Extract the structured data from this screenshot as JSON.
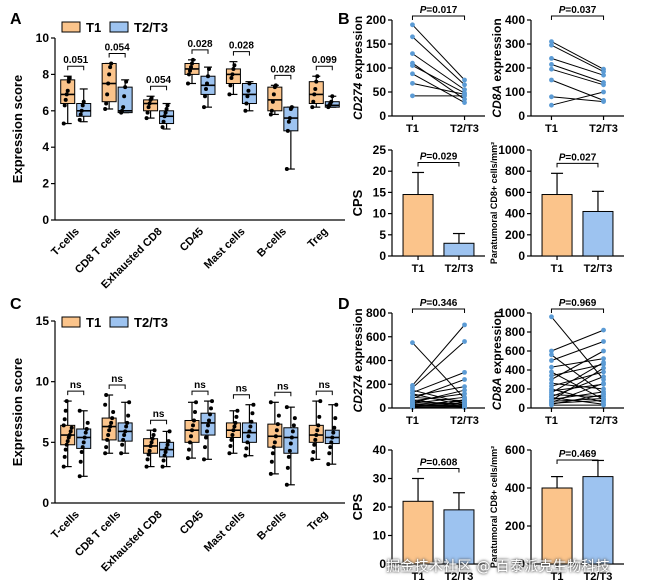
{
  "colors": {
    "t1": "#FBC48B",
    "t23": "#9DC3F0",
    "dot": "#000000",
    "line": "#000000",
    "point": "#5B9BD5"
  },
  "legend": {
    "t1": "T1",
    "t23": "T2/T3"
  },
  "watermark": "掘金技术社区 @ 百泰派克生物科技",
  "chart_data": [
    {
      "id": "A",
      "panel": "A",
      "type": "box",
      "ylabel": "Expression score",
      "ylim": [
        0,
        10
      ],
      "yticks": [
        0,
        2,
        4,
        6,
        8,
        10
      ],
      "categories": [
        "T-cells",
        "CD8 T cells",
        "Exhausted CD8",
        "CD45",
        "Mast cells",
        "B-cells",
        "Treg"
      ],
      "pvalues": [
        "0.051",
        "0.054",
        "0.054",
        "0.028",
        "0.028",
        "0.028",
        "0.099"
      ],
      "series": [
        {
          "name": "T1",
          "boxes": [
            {
              "min": 5.3,
              "q1": 6.4,
              "med": 6.9,
              "q3": 7.7,
              "max": 7.9,
              "pts": [
                5.3,
                6.3,
                6.6,
                6.9,
                7.1,
                7.6,
                7.8
              ]
            },
            {
              "min": 6.1,
              "q1": 6.5,
              "med": 7.5,
              "q3": 8.6,
              "max": 8.6,
              "pts": [
                6.1,
                6.4,
                6.9,
                7.5,
                8.0,
                8.4,
                8.6
              ]
            },
            {
              "min": 5.6,
              "q1": 6.0,
              "med": 6.4,
              "q3": 6.6,
              "max": 6.8,
              "pts": [
                5.6,
                5.9,
                6.2,
                6.4,
                6.6,
                6.7
              ]
            },
            {
              "min": 7.5,
              "q1": 8.0,
              "med": 8.3,
              "q3": 8.6,
              "max": 8.8,
              "pts": [
                7.5,
                8.0,
                8.2,
                8.4,
                8.6,
                8.8
              ]
            },
            {
              "min": 6.9,
              "q1": 7.5,
              "med": 8.0,
              "q3": 8.3,
              "max": 8.7,
              "pts": [
                6.9,
                7.4,
                7.8,
                8.0,
                8.3,
                8.5
              ]
            },
            {
              "min": 5.8,
              "q1": 6.0,
              "med": 6.6,
              "q3": 7.3,
              "max": 7.4,
              "pts": [
                5.8,
                6.0,
                6.5,
                6.9,
                7.3,
                7.4
              ]
            },
            {
              "min": 6.2,
              "q1": 6.4,
              "med": 6.9,
              "q3": 7.6,
              "max": 7.9,
              "pts": [
                6.2,
                6.5,
                6.9,
                7.2,
                7.6,
                7.9
              ]
            }
          ]
        },
        {
          "name": "T2/T3",
          "boxes": [
            {
              "min": 5.4,
              "q1": 5.7,
              "med": 6.0,
              "q3": 6.4,
              "max": 7.2,
              "pts": [
                5.5,
                5.8,
                6.0,
                6.3,
                6.5
              ]
            },
            {
              "min": 5.9,
              "q1": 5.9,
              "med": 6.0,
              "q3": 7.3,
              "max": 7.7,
              "pts": [
                5.9,
                6.0,
                6.2,
                6.8,
                7.3,
                7.6
              ]
            },
            {
              "min": 5.0,
              "q1": 5.3,
              "med": 5.7,
              "q3": 6.0,
              "max": 6.4,
              "pts": [
                5.1,
                5.4,
                5.7,
                5.9,
                6.1,
                6.3
              ]
            },
            {
              "min": 6.2,
              "q1": 6.9,
              "med": 7.4,
              "q3": 7.9,
              "max": 8.4,
              "pts": [
                6.2,
                6.8,
                7.2,
                7.5,
                7.9,
                8.3
              ]
            },
            {
              "min": 6.0,
              "q1": 6.4,
              "med": 6.9,
              "q3": 7.5,
              "max": 7.6,
              "pts": [
                6.0,
                6.4,
                6.8,
                7.1,
                7.5
              ]
            },
            {
              "min": 2.8,
              "q1": 4.9,
              "med": 5.6,
              "q3": 6.2,
              "max": 6.2,
              "pts": [
                2.8,
                4.9,
                5.4,
                5.6,
                6.1,
                6.2
              ]
            },
            {
              "min": 6.2,
              "q1": 6.2,
              "med": 6.3,
              "q3": 6.5,
              "max": 6.8,
              "pts": [
                6.2,
                6.3,
                6.4,
                6.5,
                6.8
              ]
            }
          ]
        }
      ]
    },
    {
      "id": "C",
      "panel": "C",
      "type": "box",
      "ylabel": "Expression score",
      "ylim": [
        0,
        15
      ],
      "yticks": [
        0,
        5,
        10,
        15
      ],
      "categories": [
        "T-cells",
        "CD8 T cells",
        "Exhausted CD8",
        "CD45",
        "Mast cells",
        "B-cells",
        "Treg"
      ],
      "pvalues": [
        "ns",
        "ns",
        "ns",
        "ns",
        "ns",
        "ns",
        "ns"
      ],
      "series": [
        {
          "name": "T1",
          "boxes": [
            {
              "min": 3.0,
              "q1": 4.8,
              "med": 5.6,
              "q3": 6.4,
              "max": 8.4,
              "pts": [
                3.0,
                3.8,
                4.4,
                4.8,
                5.1,
                5.4,
                5.6,
                5.9,
                6.2,
                6.4,
                6.9,
                7.6,
                8.4
              ]
            },
            {
              "min": 4.1,
              "q1": 5.2,
              "med": 6.3,
              "q3": 7.0,
              "max": 8.9,
              "pts": [
                4.1,
                4.6,
                5.2,
                5.6,
                6.0,
                6.3,
                6.6,
                7.0,
                7.5,
                8.1,
                8.9
              ]
            },
            {
              "min": 3.0,
              "q1": 4.1,
              "med": 4.7,
              "q3": 5.3,
              "max": 6.0,
              "pts": [
                3.0,
                3.6,
                4.0,
                4.3,
                4.7,
                5.0,
                5.3,
                5.6,
                6.0
              ]
            },
            {
              "min": 3.7,
              "q1": 5.0,
              "med": 6.0,
              "q3": 6.8,
              "max": 8.3,
              "pts": [
                3.7,
                4.4,
                5.0,
                5.5,
                6.0,
                6.4,
                6.8,
                7.5,
                8.3
              ]
            },
            {
              "min": 4.1,
              "q1": 5.4,
              "med": 6.0,
              "q3": 6.6,
              "max": 7.6,
              "pts": [
                4.1,
                4.7,
                5.2,
                5.6,
                6.0,
                6.3,
                6.6,
                7.1,
                7.6
              ]
            },
            {
              "min": 2.4,
              "q1": 4.6,
              "med": 5.5,
              "q3": 6.5,
              "max": 8.3,
              "pts": [
                2.4,
                3.4,
                4.1,
                4.6,
                5.0,
                5.5,
                6.0,
                6.5,
                7.2,
                8.3
              ]
            },
            {
              "min": 3.6,
              "q1": 5.0,
              "med": 5.6,
              "q3": 6.4,
              "max": 8.4,
              "pts": [
                3.6,
                4.2,
                4.8,
                5.2,
                5.6,
                6.0,
                6.4,
                7.1,
                8.4
              ]
            }
          ]
        },
        {
          "name": "T2/T3",
          "boxes": [
            {
              "min": 2.2,
              "q1": 4.5,
              "med": 5.4,
              "q3": 6.1,
              "max": 7.6,
              "pts": [
                2.2,
                3.4,
                4.2,
                4.6,
                5.0,
                5.4,
                5.8,
                6.1,
                6.6,
                7.6
              ]
            },
            {
              "min": 4.1,
              "q1": 5.1,
              "med": 5.9,
              "q3": 6.6,
              "max": 8.3,
              "pts": [
                4.1,
                4.8,
                5.2,
                5.6,
                5.9,
                6.3,
                6.6,
                7.2,
                8.3
              ]
            },
            {
              "min": 3.0,
              "q1": 3.8,
              "med": 4.4,
              "q3": 5.0,
              "max": 5.9,
              "pts": [
                3.0,
                3.5,
                3.9,
                4.2,
                4.5,
                4.8,
                5.1,
                5.9
              ]
            },
            {
              "min": 3.6,
              "q1": 5.6,
              "med": 6.6,
              "q3": 7.4,
              "max": 8.4,
              "pts": [
                3.6,
                4.6,
                5.4,
                5.9,
                6.4,
                6.8,
                7.3,
                7.8,
                8.4
              ]
            },
            {
              "min": 3.9,
              "q1": 5.0,
              "med": 5.8,
              "q3": 6.6,
              "max": 8.1,
              "pts": [
                3.9,
                4.5,
                5.0,
                5.5,
                5.9,
                6.3,
                6.7,
                7.4,
                8.1
              ]
            },
            {
              "min": 1.5,
              "q1": 4.1,
              "med": 5.4,
              "q3": 6.2,
              "max": 7.9,
              "pts": [
                1.5,
                2.9,
                3.8,
                4.3,
                4.9,
                5.4,
                5.9,
                6.4,
                7.0,
                7.9
              ]
            },
            {
              "min": 3.2,
              "q1": 4.9,
              "med": 5.4,
              "q3": 6.0,
              "max": 8.1,
              "pts": [
                3.2,
                4.1,
                4.6,
                5.0,
                5.4,
                5.8,
                6.2,
                7.0,
                8.1
              ]
            }
          ]
        }
      ]
    },
    {
      "id": "B1",
      "panel": "B",
      "type": "paired-line",
      "ylabel_italic": "CD274",
      "ylabel_rest": " expression",
      "ylim": [
        0,
        200
      ],
      "yticks": [
        0,
        50,
        100,
        150,
        200
      ],
      "categories": [
        "T1",
        "T2/T3"
      ],
      "pvalue": "0.017",
      "pairs": [
        [
          190,
          75
        ],
        [
          165,
          65
        ],
        [
          130,
          55
        ],
        [
          110,
          35
        ],
        [
          105,
          48
        ],
        [
          88,
          28
        ],
        [
          68,
          45
        ],
        [
          42,
          42
        ]
      ]
    },
    {
      "id": "B2",
      "panel": "B",
      "type": "paired-line",
      "ylabel_italic": "CD8A",
      "ylabel_rest": " expression",
      "ylim": [
        0,
        400
      ],
      "yticks": [
        0,
        100,
        200,
        300,
        400
      ],
      "categories": [
        "T1",
        "T2/T3"
      ],
      "pvalue": "0.037",
      "pairs": [
        [
          310,
          195
        ],
        [
          295,
          185
        ],
        [
          240,
          170
        ],
        [
          215,
          140
        ],
        [
          195,
          130
        ],
        [
          150,
          65
        ],
        [
          80,
          60
        ],
        [
          45,
          100
        ]
      ]
    },
    {
      "id": "B3",
      "panel": "B",
      "type": "bar",
      "ylabel": "CPS",
      "ylim": [
        0,
        25
      ],
      "yticks": [
        0,
        5,
        10,
        15,
        20,
        25
      ],
      "categories": [
        "T1",
        "T2/T3"
      ],
      "values": [
        14.5,
        3.0
      ],
      "errors": [
        5.2,
        2.3
      ],
      "pvalue": "0.029"
    },
    {
      "id": "B4",
      "panel": "B",
      "type": "bar",
      "ylabel": "Paratumoral CD8+ cells/mm²",
      "ylim": [
        0,
        1000
      ],
      "yticks": [
        0,
        200,
        400,
        600,
        800,
        1000
      ],
      "categories": [
        "T1",
        "T2/T3"
      ],
      "values": [
        580,
        420
      ],
      "errors": [
        200,
        190
      ],
      "pvalue": "0.027"
    },
    {
      "id": "D1",
      "panel": "D",
      "type": "paired-line",
      "ylabel_italic": "CD274",
      "ylabel_rest": " expression",
      "ylim": [
        0,
        800
      ],
      "yticks": [
        0,
        200,
        400,
        600,
        800
      ],
      "categories": [
        "T1",
        "T2/T3"
      ],
      "pvalue": "0.346",
      "pairs": [
        [
          550,
          80
        ],
        [
          190,
          700
        ],
        [
          170,
          560
        ],
        [
          150,
          40
        ],
        [
          130,
          300
        ],
        [
          120,
          20
        ],
        [
          100,
          180
        ],
        [
          90,
          60
        ],
        [
          80,
          240
        ],
        [
          70,
          10
        ],
        [
          60,
          120
        ],
        [
          55,
          30
        ],
        [
          45,
          150
        ],
        [
          40,
          90
        ],
        [
          35,
          5
        ],
        [
          30,
          60
        ],
        [
          25,
          20
        ],
        [
          20,
          45
        ],
        [
          15,
          15
        ],
        [
          10,
          35
        ],
        [
          8,
          70
        ],
        [
          5,
          10
        ]
      ]
    },
    {
      "id": "D2",
      "panel": "D",
      "type": "paired-line",
      "ylabel_italic": "CD8A",
      "ylabel_rest": " expression",
      "ylim": [
        0,
        1000
      ],
      "yticks": [
        0,
        200,
        400,
        600,
        800,
        1000
      ],
      "categories": [
        "T1",
        "T2/T3"
      ],
      "pvalue": "0.969",
      "pairs": [
        [
          960,
          300
        ],
        [
          600,
          820
        ],
        [
          560,
          150
        ],
        [
          500,
          700
        ],
        [
          430,
          520
        ],
        [
          380,
          90
        ],
        [
          340,
          460
        ],
        [
          300,
          600
        ],
        [
          260,
          200
        ],
        [
          230,
          380
        ],
        [
          200,
          60
        ],
        [
          180,
          250
        ],
        [
          160,
          480
        ],
        [
          140,
          120
        ],
        [
          120,
          330
        ],
        [
          110,
          40
        ],
        [
          90,
          170
        ],
        [
          80,
          420
        ],
        [
          70,
          100
        ],
        [
          60,
          260
        ],
        [
          50,
          80
        ],
        [
          40,
          140
        ],
        [
          30,
          30
        ]
      ]
    },
    {
      "id": "D3",
      "panel": "D",
      "type": "bar",
      "ylabel": "CPS",
      "ylim": [
        0,
        40
      ],
      "yticks": [
        0,
        10,
        20,
        30,
        40
      ],
      "categories": [
        "T1",
        "T2/T3"
      ],
      "values": [
        22,
        19
      ],
      "errors": [
        8,
        6
      ],
      "pvalue": "0.608"
    },
    {
      "id": "D4",
      "panel": "D",
      "type": "bar",
      "ylabel": "Paratumoral CD8+ cells/mm²",
      "ylim": [
        0,
        600
      ],
      "yticks": [
        0,
        200,
        400,
        600
      ],
      "categories": [
        "T1",
        "T2/T3"
      ],
      "values": [
        400,
        460
      ],
      "errors": [
        60,
        85
      ],
      "pvalue": "0.469"
    }
  ]
}
